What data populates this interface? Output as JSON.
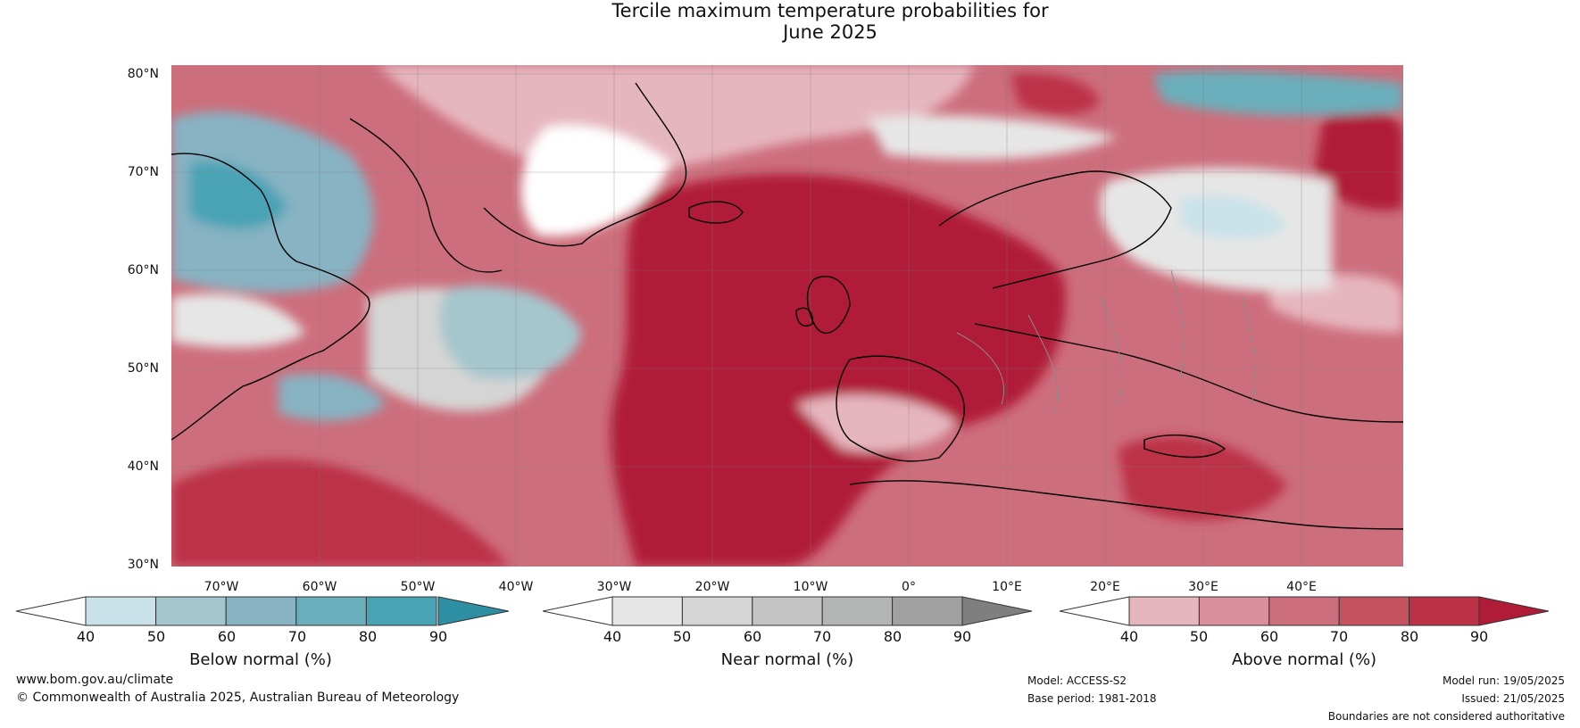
{
  "title_line1": "Tercile maximum temperature probabilities for",
  "title_line2": "June 2025",
  "lat_labels": [
    "80°N",
    "70°N",
    "60°N",
    "50°N",
    "40°N",
    "30°N"
  ],
  "lon_labels": [
    "70°W",
    "60°W",
    "50°W",
    "40°W",
    "30°W",
    "20°W",
    "10°W",
    "0°",
    "10°E",
    "20°E",
    "30°E",
    "40°E"
  ],
  "colorbars": [
    {
      "label": "Below normal (%)",
      "ticks": [
        "40",
        "50",
        "60",
        "70",
        "80",
        "90"
      ],
      "colors": [
        "#c9e2e9",
        "#a5c6cd",
        "#87b3c3",
        "#6aafbb",
        "#4aa3b5",
        "#2e8fa4"
      ]
    },
    {
      "label": "Near normal (%)",
      "ticks": [
        "40",
        "50",
        "60",
        "70",
        "80",
        "90"
      ],
      "colors": [
        "#e6e6e6",
        "#d5d5d5",
        "#c4c4c4",
        "#b3b5b5",
        "#a1a1a1",
        "#7f7f7f"
      ]
    },
    {
      "label": "Above normal (%)",
      "ticks": [
        "40",
        "50",
        "60",
        "70",
        "80",
        "90"
      ],
      "colors": [
        "#e6b6bf",
        "#d9909c",
        "#cd6e7c",
        "#c5525f",
        "#bc3146",
        "#b01c37"
      ]
    }
  ],
  "footer": {
    "website": "www.bom.gov.au/climate",
    "copyright": "© Commonwealth of Australia 2025, Australian Bureau of Meteorology",
    "model": "Model: ACCESS-S2",
    "base_period": "Base period: 1981-2018",
    "model_run": "Model run: 19/05/2025",
    "issued": "Issued: 21/05/2025",
    "disclaimer": "Boundaries are not considered authoritative"
  }
}
